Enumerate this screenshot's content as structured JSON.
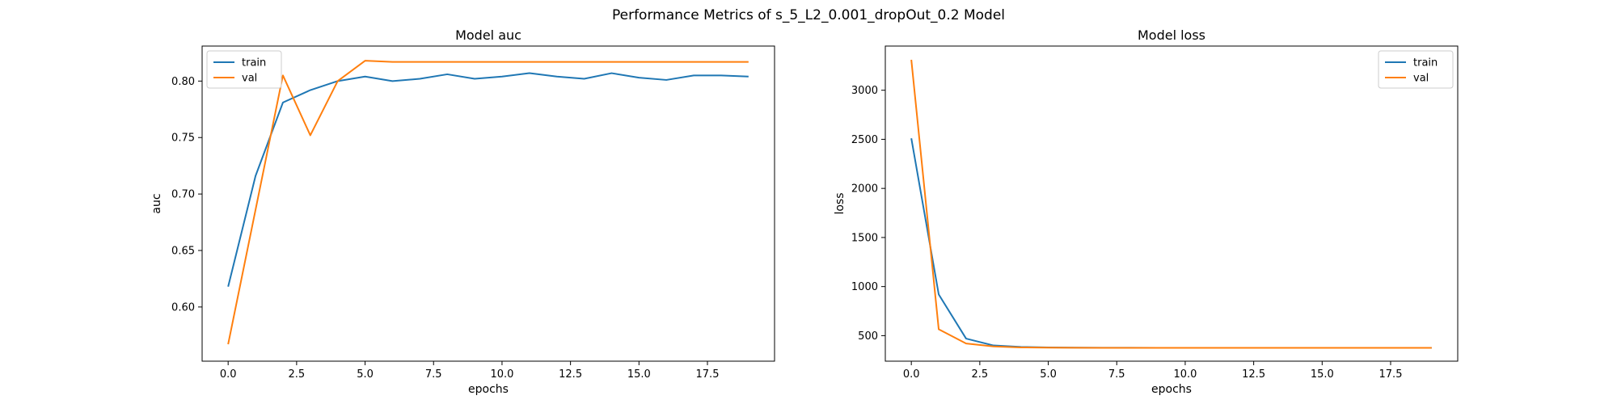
{
  "figure": {
    "suptitle": "Performance Metrics of s_5_L2_0.001_dropOut_0.2 Model"
  },
  "colors": {
    "train": "#1f77b4",
    "val": "#ff7f0e"
  },
  "chart_data": [
    {
      "type": "line",
      "title": "Model auc",
      "xlabel": "epochs",
      "ylabel": "auc",
      "xlim": [
        -0.95,
        19.95
      ],
      "ylim": [
        0.552,
        0.831
      ],
      "xticks": [
        0.0,
        2.5,
        5.0,
        7.5,
        10.0,
        12.5,
        15.0,
        17.5
      ],
      "xtick_labels": [
        "0.0",
        "2.5",
        "5.0",
        "7.5",
        "10.0",
        "12.5",
        "15.0",
        "17.5"
      ],
      "yticks": [
        0.6,
        0.65,
        0.7,
        0.75,
        0.8
      ],
      "ytick_labels": [
        "0.60",
        "0.65",
        "0.70",
        "0.75",
        "0.80"
      ],
      "legend": "upper-left",
      "grid": false,
      "x": [
        0,
        1,
        2,
        3,
        4,
        5,
        6,
        7,
        8,
        9,
        10,
        11,
        12,
        13,
        14,
        15,
        16,
        17,
        18,
        19
      ],
      "series": [
        {
          "name": "train",
          "color": "#1f77b4",
          "values": [
            0.618,
            0.716,
            0.781,
            0.792,
            0.8,
            0.804,
            0.8,
            0.802,
            0.806,
            0.802,
            0.804,
            0.807,
            0.804,
            0.802,
            0.807,
            0.803,
            0.801,
            0.805,
            0.805,
            0.804
          ]
        },
        {
          "name": "val",
          "color": "#ff7f0e",
          "values": [
            0.567,
            0.686,
            0.805,
            0.752,
            0.8,
            0.818,
            0.817,
            0.817,
            0.817,
            0.817,
            0.817,
            0.817,
            0.817,
            0.817,
            0.817,
            0.817,
            0.817,
            0.817,
            0.817,
            0.817
          ]
        }
      ]
    },
    {
      "type": "line",
      "title": "Model loss",
      "xlabel": "epochs",
      "ylabel": "loss",
      "xlim": [
        -0.95,
        19.95
      ],
      "ylim": [
        240,
        3450
      ],
      "xticks": [
        0.0,
        2.5,
        5.0,
        7.5,
        10.0,
        12.5,
        15.0,
        17.5
      ],
      "xtick_labels": [
        "0.0",
        "2.5",
        "5.0",
        "7.5",
        "10.0",
        "12.5",
        "15.0",
        "17.5"
      ],
      "yticks": [
        500,
        1000,
        1500,
        2000,
        2500,
        3000
      ],
      "ytick_labels": [
        "500",
        "1000",
        "1500",
        "2000",
        "2500",
        "3000"
      ],
      "legend": "upper-right",
      "grid": false,
      "x": [
        0,
        1,
        2,
        3,
        4,
        5,
        6,
        7,
        8,
        9,
        10,
        11,
        12,
        13,
        14,
        15,
        16,
        17,
        18,
        19
      ],
      "series": [
        {
          "name": "train",
          "color": "#1f77b4",
          "values": [
            2510,
            920,
            470,
            400,
            385,
            380,
            378,
            377,
            377,
            376,
            376,
            376,
            376,
            376,
            376,
            376,
            376,
            376,
            376,
            376
          ]
        },
        {
          "name": "val",
          "color": "#ff7f0e",
          "values": [
            3310,
            565,
            420,
            390,
            380,
            378,
            377,
            376,
            376,
            376,
            376,
            376,
            376,
            376,
            376,
            376,
            376,
            376,
            376,
            376
          ]
        }
      ]
    }
  ]
}
